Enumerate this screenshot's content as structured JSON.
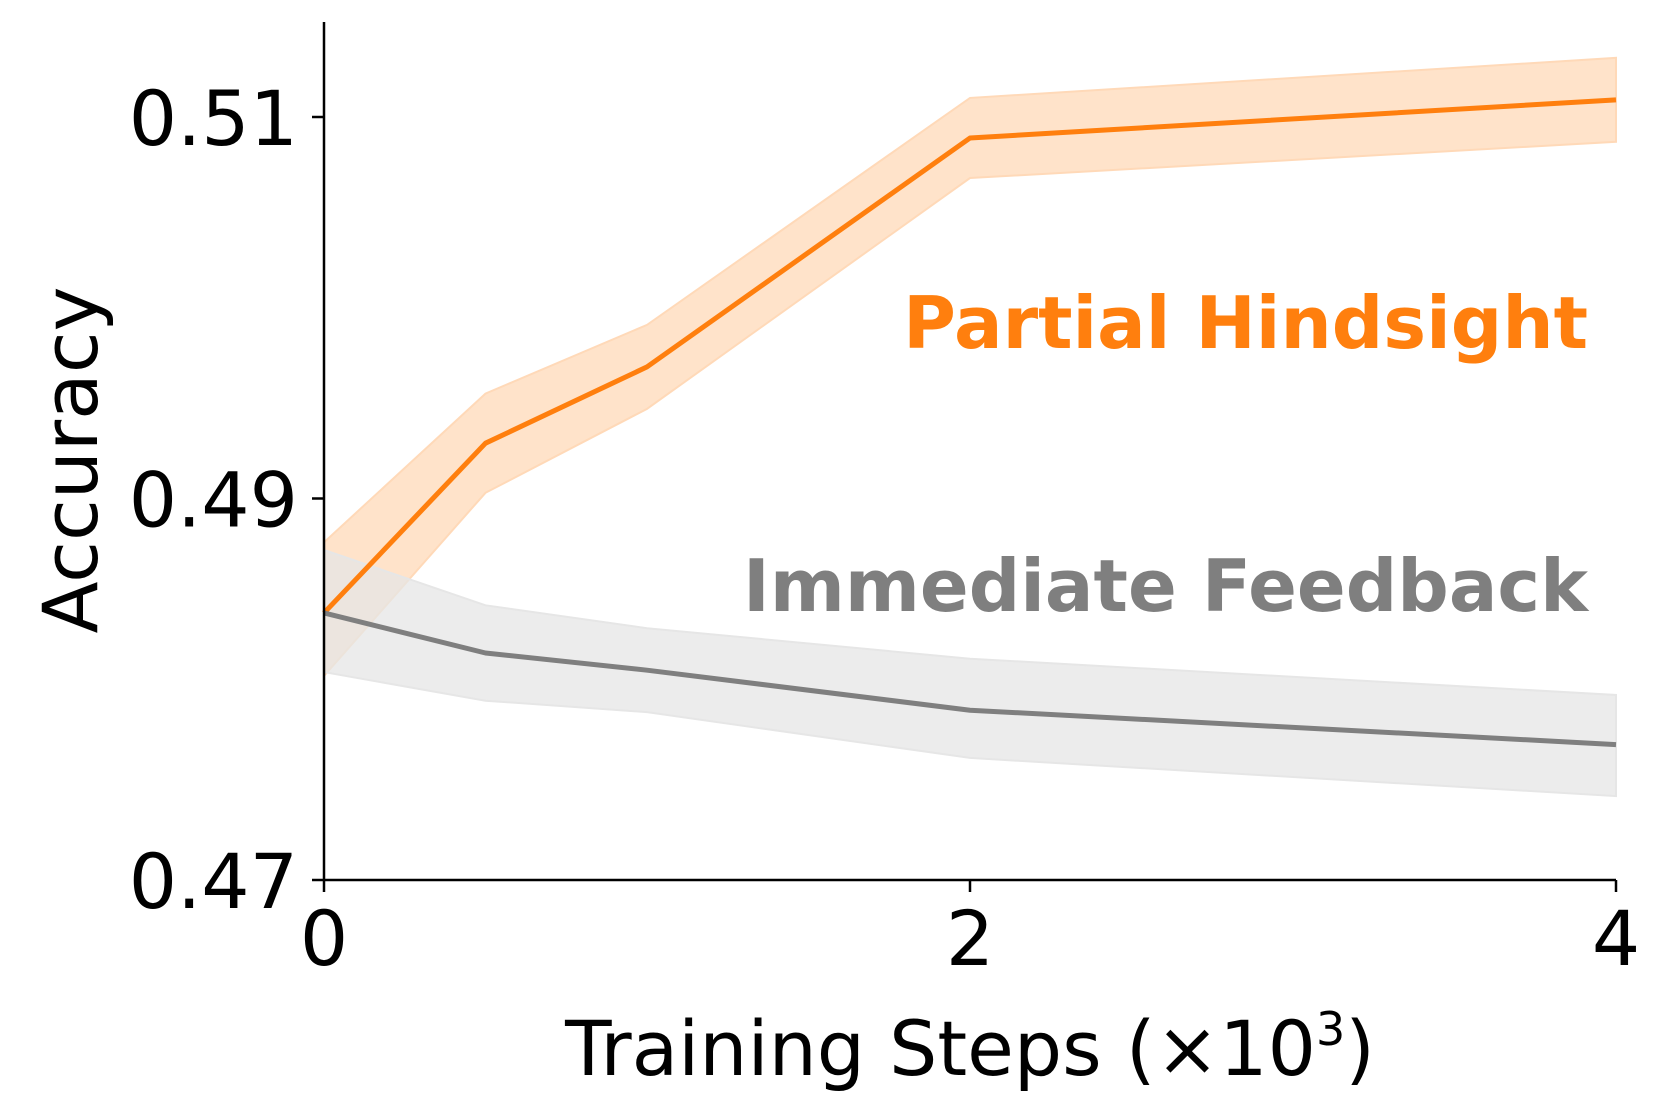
{
  "chart_data": {
    "type": "line",
    "xlabel": "Training Steps (×10",
    "xlabel_superscript": "3",
    "xlabel_suffix": ")",
    "ylabel": "Accuracy",
    "xlim": [
      0,
      4
    ],
    "ylim": [
      0.47,
      0.515
    ],
    "xticks": [
      0,
      2,
      4
    ],
    "xtick_labels": [
      "0",
      "2",
      "4"
    ],
    "yticks": [
      0.47,
      0.49,
      0.51
    ],
    "ytick_labels": [
      "0.47",
      "0.49",
      "0.51"
    ],
    "grid": false,
    "series": [
      {
        "name": "Partial Hindsight",
        "color": "#ff7f0e",
        "band_color": "#ffd9b8",
        "x": [
          0,
          0.5,
          1,
          2,
          4
        ],
        "y": [
          0.484,
          0.4929,
          0.4969,
          0.5089,
          0.5109
        ],
        "lower": [
          0.4807,
          0.4903,
          0.4947,
          0.5068,
          0.5087
        ],
        "upper": [
          0.4877,
          0.4955,
          0.4991,
          0.511,
          0.5131
        ],
        "label_position": "right-middle"
      },
      {
        "name": "Immediate Feedback",
        "color": "#7f7f7f",
        "band_color": "#e6e6e6",
        "x": [
          0,
          0.5,
          1,
          2,
          4
        ],
        "y": [
          0.484,
          0.4819,
          0.481,
          0.4789,
          0.4771
        ],
        "lower": [
          0.4809,
          0.4794,
          0.4788,
          0.4764,
          0.4744
        ],
        "upper": [
          0.4873,
          0.4844,
          0.4832,
          0.4816,
          0.4797
        ],
        "label_position": "right-lower"
      }
    ]
  }
}
